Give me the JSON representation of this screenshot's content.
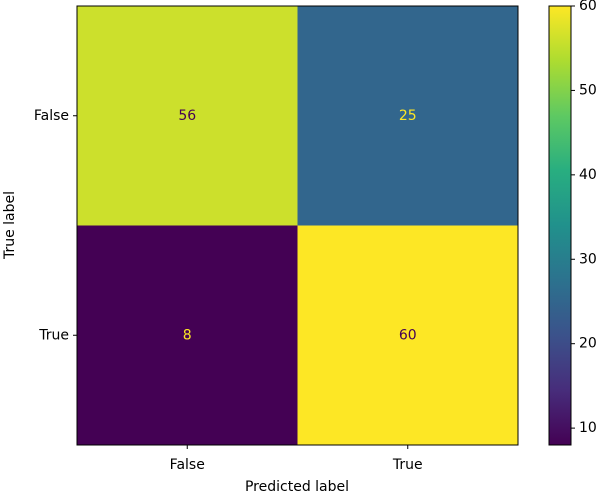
{
  "chart_data": {
    "type": "heatmap",
    "x_categories": [
      "False",
      "True"
    ],
    "y_categories": [
      "False",
      "True"
    ],
    "values": [
      [
        56,
        25
      ],
      [
        8,
        60
      ]
    ],
    "xlabel": "Predicted label",
    "ylabel": "True label",
    "colormap": "viridis",
    "clim": [
      8,
      60
    ],
    "cticks": [
      10,
      20,
      30,
      40,
      50,
      60
    ]
  }
}
